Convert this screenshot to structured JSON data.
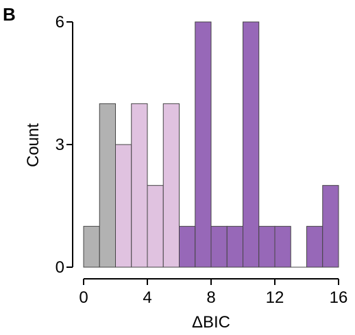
{
  "panel_label": "B",
  "colors": {
    "grey": "#b2b2b2",
    "light": "#e0c2e0",
    "purple": "#9768b8",
    "edge": "#444444",
    "axis": "#000000"
  },
  "chart_data": {
    "type": "bar",
    "xlabel": "ΔBIC",
    "ylabel": "Count",
    "xlim": [
      0,
      16
    ],
    "ylim": [
      0,
      6
    ],
    "xticks": [
      0,
      4,
      8,
      12,
      16
    ],
    "yticks": [
      0,
      3,
      6
    ],
    "bin_width": 1,
    "bins": [
      {
        "x0": 0,
        "x1": 1,
        "value": 1,
        "group": "grey"
      },
      {
        "x0": 1,
        "x1": 2,
        "value": 4,
        "group": "grey"
      },
      {
        "x0": 2,
        "x1": 3,
        "value": 3,
        "group": "light"
      },
      {
        "x0": 3,
        "x1": 4,
        "value": 4,
        "group": "light"
      },
      {
        "x0": 4,
        "x1": 5,
        "value": 2,
        "group": "light"
      },
      {
        "x0": 5,
        "x1": 6,
        "value": 4,
        "group": "light"
      },
      {
        "x0": 6,
        "x1": 7,
        "value": 1,
        "group": "purple"
      },
      {
        "x0": 7,
        "x1": 8,
        "value": 6,
        "group": "purple"
      },
      {
        "x0": 8,
        "x1": 9,
        "value": 1,
        "group": "purple"
      },
      {
        "x0": 9,
        "x1": 10,
        "value": 1,
        "group": "purple"
      },
      {
        "x0": 10,
        "x1": 11,
        "value": 6,
        "group": "purple"
      },
      {
        "x0": 11,
        "x1": 12,
        "value": 1,
        "group": "purple"
      },
      {
        "x0": 12,
        "x1": 13,
        "value": 1,
        "group": "purple"
      },
      {
        "x0": 13,
        "x1": 14,
        "value": 0,
        "group": "purple"
      },
      {
        "x0": 14,
        "x1": 15,
        "value": 1,
        "group": "purple"
      },
      {
        "x0": 15,
        "x1": 16,
        "value": 2,
        "group": "purple"
      }
    ]
  }
}
